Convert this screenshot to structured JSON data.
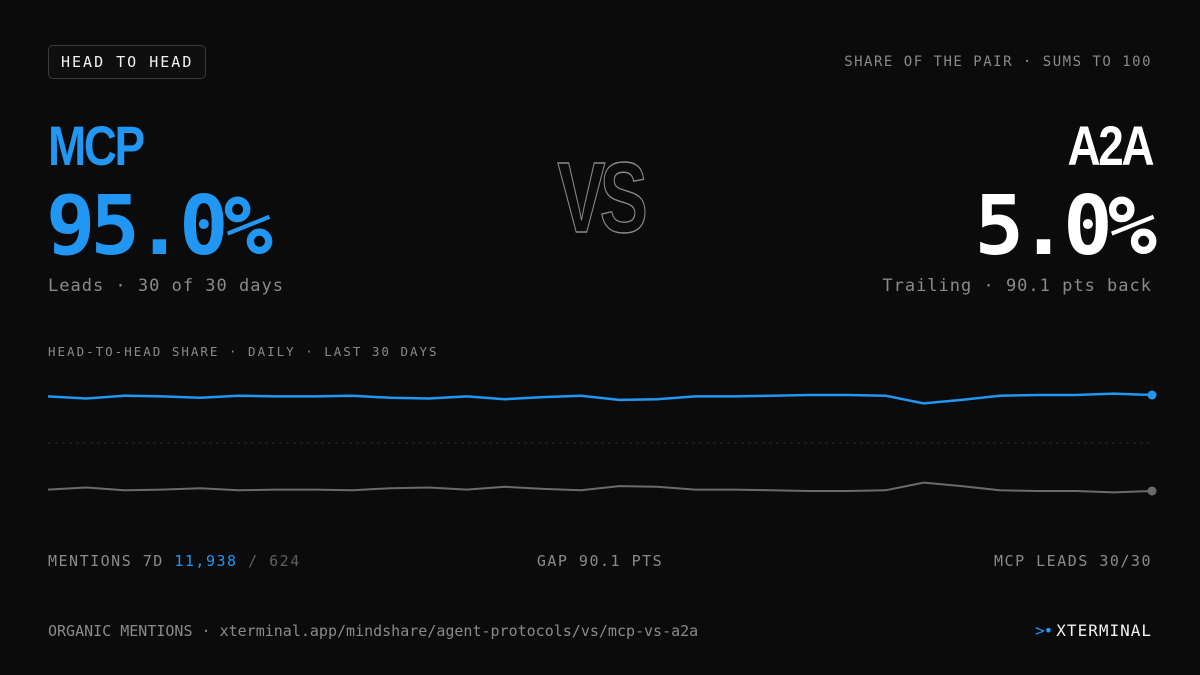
{
  "badge": "HEAD TO HEAD",
  "subtitle_right": "SHARE OF THE PAIR · SUMS TO 100",
  "vs": "VS",
  "left": {
    "name": "MCP",
    "percent": "95.0%",
    "status": "Leads · 30 of 30 days"
  },
  "right": {
    "name": "A2A",
    "percent": "5.0%",
    "status": "Trailing · 90.1 pts back"
  },
  "chart_label": "HEAD-TO-HEAD SHARE · DAILY · LAST 30 DAYS",
  "stats": {
    "mentions_label": "MENTIONS 7D",
    "mentions_left": "11,938",
    "mentions_sep": "/",
    "mentions_right": "624",
    "gap": "GAP 90.1 PTS",
    "leads": "MCP LEADS 30/30"
  },
  "footer": {
    "text": "ORGANIC MENTIONS · xterminal.app/mindshare/agent-protocols/vs/mcp-vs-a2a",
    "brand_mark": ">•",
    "brand_name": "XTERMINAL"
  },
  "colors": {
    "mcp": "#2196f3",
    "a2a": "#6b6b6b",
    "background": "#0b0b0b"
  },
  "chart_data": {
    "type": "line",
    "title": "HEAD-TO-HEAD SHARE · DAILY · LAST 30 DAYS",
    "x": [
      1,
      2,
      3,
      4,
      5,
      6,
      7,
      8,
      9,
      10,
      11,
      12,
      13,
      14,
      15,
      16,
      17,
      18,
      19,
      20,
      21,
      22,
      23,
      24,
      25,
      26,
      27,
      28,
      29,
      30
    ],
    "ylim": [
      0,
      100
    ],
    "grid": false,
    "series": [
      {
        "name": "MCP",
        "color": "#2196f3",
        "values": [
          94.8,
          94.5,
          94.9,
          94.8,
          94.6,
          94.9,
          94.8,
          94.8,
          94.9,
          94.6,
          94.5,
          94.8,
          94.4,
          94.7,
          94.9,
          94.3,
          94.4,
          94.8,
          94.8,
          94.9,
          95.0,
          95.0,
          94.9,
          93.8,
          94.3,
          94.9,
          95.0,
          95.0,
          95.2,
          95.0
        ]
      },
      {
        "name": "A2A",
        "color": "#6b6b6b",
        "values": [
          5.2,
          5.5,
          5.1,
          5.2,
          5.4,
          5.1,
          5.2,
          5.2,
          5.1,
          5.4,
          5.5,
          5.2,
          5.6,
          5.3,
          5.1,
          5.7,
          5.6,
          5.2,
          5.2,
          5.1,
          5.0,
          5.0,
          5.1,
          6.2,
          5.7,
          5.1,
          5.0,
          5.0,
          4.8,
          5.0
        ]
      }
    ]
  }
}
